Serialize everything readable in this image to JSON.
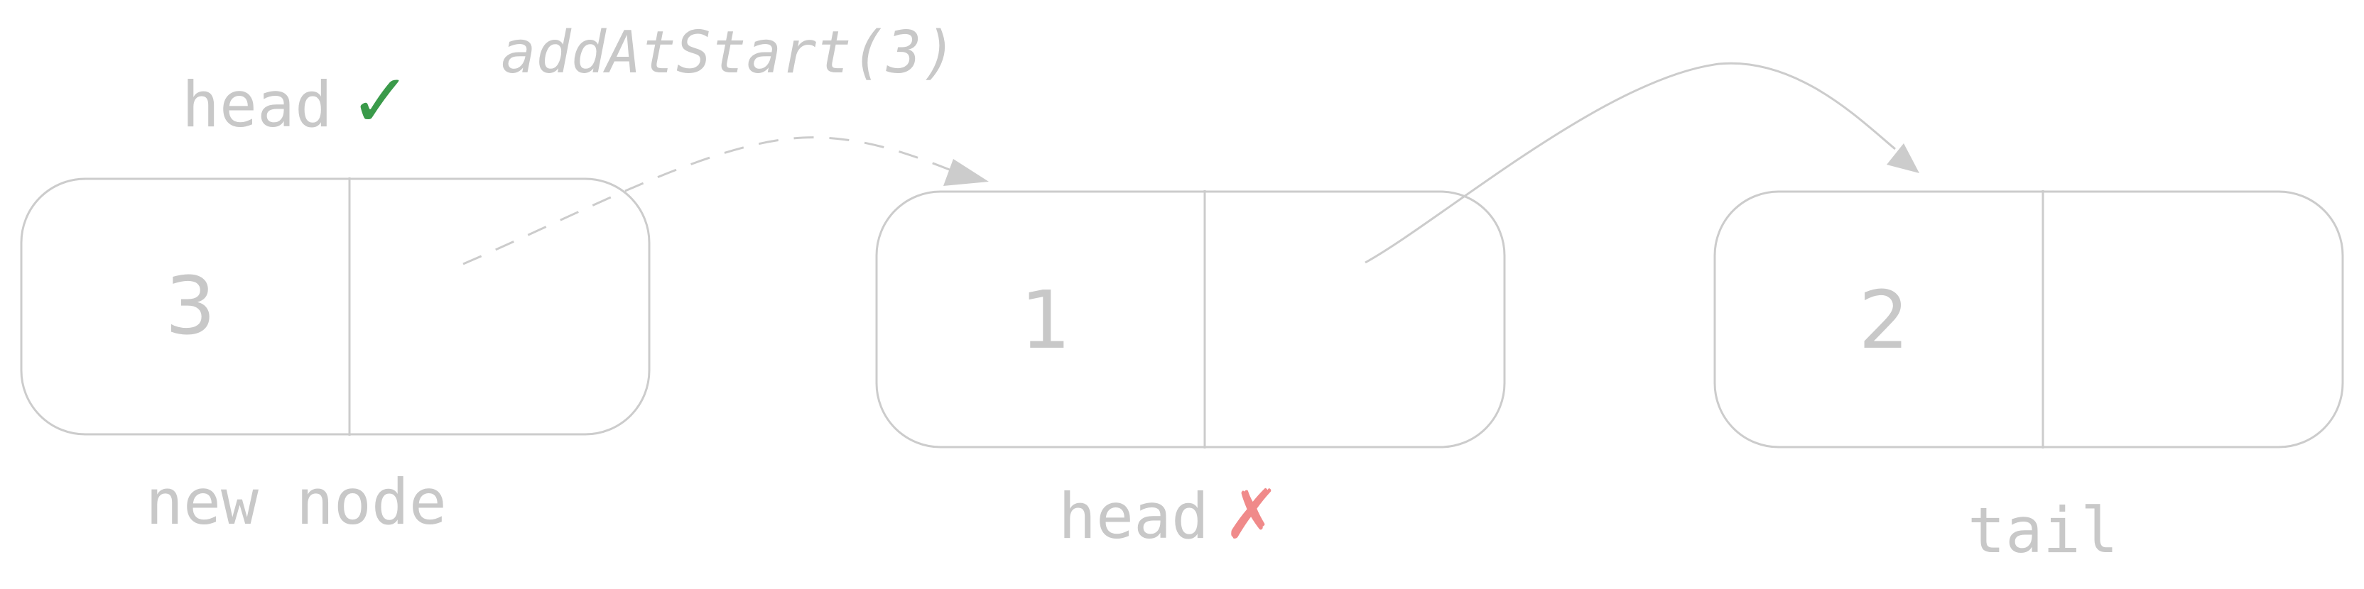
{
  "diagram": {
    "title": "",
    "operation_label": "addAtStart(3)",
    "nodes": [
      {
        "id": "new-node",
        "value": "3",
        "caption": "new node",
        "top_label": "head",
        "top_mark": "✓"
      },
      {
        "id": "old-head",
        "value": "1",
        "caption": "head",
        "caption_mark": "✗"
      },
      {
        "id": "tail-node",
        "value": "2",
        "caption": "tail"
      }
    ],
    "edges": [
      {
        "from": "new-node",
        "to": "old-head",
        "style": "dashed"
      },
      {
        "from": "old-head",
        "to": "tail-node",
        "style": "solid"
      }
    ],
    "colors": {
      "stroke": "#cccccc",
      "text": "#c8c8c8",
      "check": "#3a9a4a",
      "cross": "#f08a8a"
    }
  }
}
